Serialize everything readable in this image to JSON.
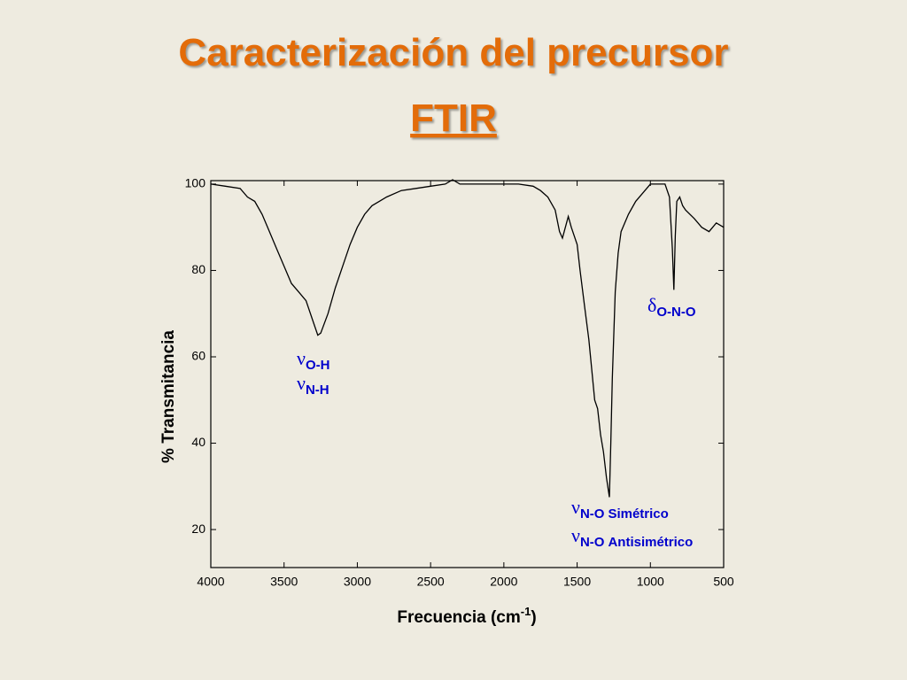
{
  "chart_data": {
    "type": "line",
    "title": "Caracterización del precursor",
    "subtitle": "FTIR",
    "x_label": {
      "text": "Frecuencia (cm",
      "superscript": "-1",
      "suffix": ")"
    },
    "y_label": "% Transmitancia",
    "color": "#000000",
    "x": [
      4000,
      3900,
      3800,
      3750,
      3700,
      3650,
      3600,
      3550,
      3500,
      3450,
      3400,
      3350,
      3300,
      3270,
      3250,
      3200,
      3150,
      3100,
      3050,
      3000,
      2950,
      2900,
      2850,
      2800,
      2700,
      2600,
      2500,
      2400,
      2350,
      2300,
      2200,
      2000,
      1900,
      1800,
      1750,
      1700,
      1650,
      1620,
      1600,
      1580,
      1560,
      1540,
      1500,
      1480,
      1450,
      1420,
      1400,
      1380,
      1360,
      1340,
      1320,
      1300,
      1280,
      1270,
      1260,
      1240,
      1220,
      1200,
      1150,
      1100,
      1050,
      1000,
      950,
      900,
      870,
      850,
      840,
      830,
      820,
      800,
      780,
      760,
      700,
      650,
      600,
      550,
      500
    ],
    "values": [
      100,
      99.5,
      99,
      97,
      96,
      93,
      89,
      85,
      81,
      77,
      75,
      73,
      68,
      65,
      65.5,
      70,
      76,
      81,
      86,
      90,
      93,
      95,
      96,
      97,
      98.5,
      99,
      99.5,
      100,
      101,
      100,
      100,
      100,
      100,
      99.5,
      98.5,
      97,
      94,
      89,
      87.5,
      90,
      92.5,
      90,
      86,
      80,
      72,
      64,
      57,
      50,
      48,
      42,
      38,
      32,
      27.5,
      40,
      55,
      75,
      84,
      89,
      93,
      96,
      98,
      100,
      100,
      100,
      97,
      85,
      75.5,
      88,
      96,
      97,
      95,
      94,
      92,
      90,
      89,
      91,
      90
    ],
    "xlim": [
      4000,
      500
    ],
    "xticks": [
      4000,
      3500,
      3000,
      2500,
      2000,
      1500,
      1000,
      500
    ],
    "ylim": [
      11.2,
      100.8
    ],
    "yticks": [
      20,
      40,
      60,
      80,
      100
    ],
    "annotations": [
      {
        "symbol": "ν",
        "subscript": "O-H"
      },
      {
        "symbol": "ν",
        "subscript": "N-H"
      },
      {
        "symbol": "ν",
        "subscript": "N-O",
        "suffix": "Simétrico"
      },
      {
        "symbol": "ν",
        "subscript": "N-O",
        "suffix": "Antisimétrico"
      },
      {
        "symbol": "δ",
        "subscript": "O-N-O"
      }
    ]
  }
}
